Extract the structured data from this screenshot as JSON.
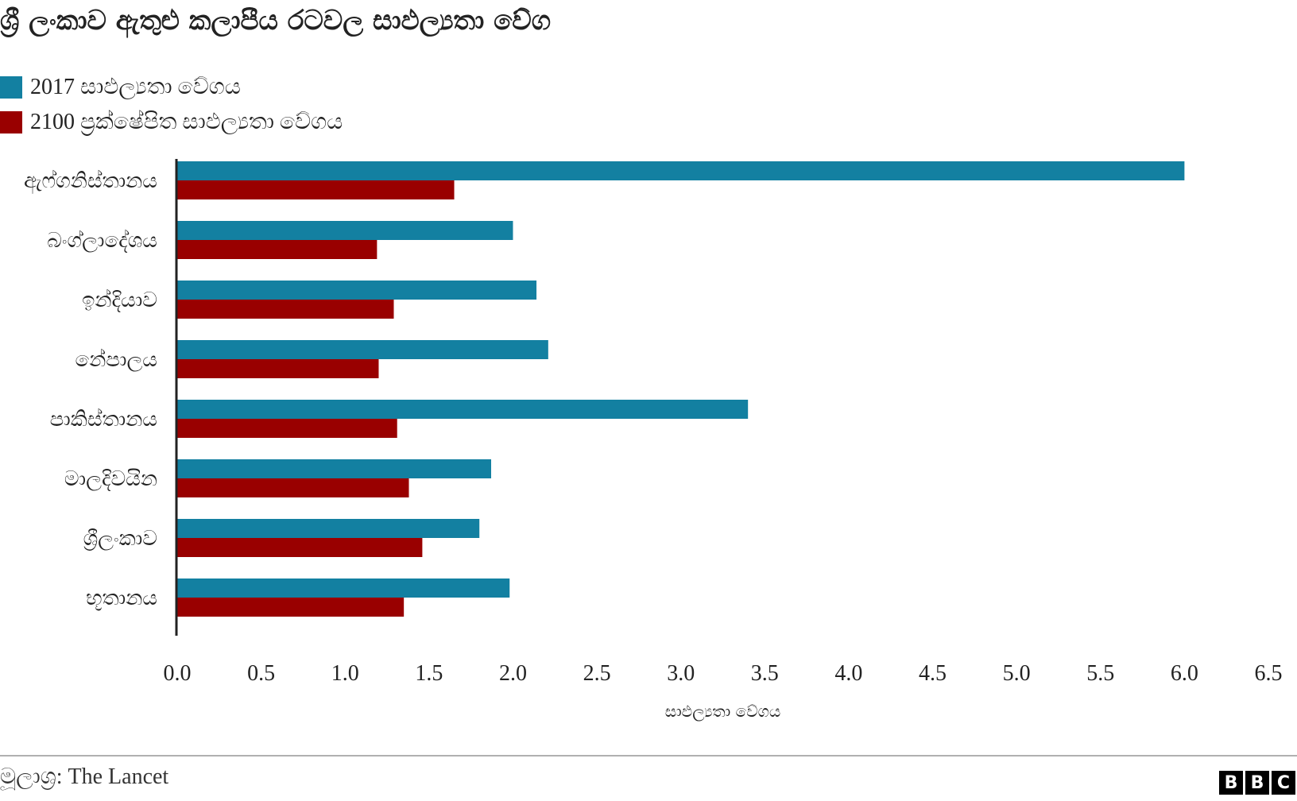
{
  "chart_data": {
    "type": "bar",
    "orientation": "horizontal",
    "title": "ශ්‍රී ලංකාව ඇතුළු කලාපීය රටවල සාඵල්‍යතා වේග",
    "categories": [
      "ඇෆ්ගනිස්තානය",
      "බංග්ලාදේශය",
      "ඉන්දියාව",
      "නේපාලය",
      "පාකිස්තානය",
      "මාලදිවයින",
      "ශ්‍රීලංකාව",
      "භූතානය"
    ],
    "series": [
      {
        "name": "2017 සාඵල්‍යතා වේගය",
        "color": "#1380A1",
        "values": [
          6.0,
          2.0,
          2.14,
          2.21,
          3.4,
          1.87,
          1.8,
          1.98
        ]
      },
      {
        "name": "2100 ප්‍රක්ෂේපිත සාඵල්‍යතා වේගය",
        "color": "#990000",
        "values": [
          1.65,
          1.19,
          1.29,
          1.2,
          1.31,
          1.38,
          1.46,
          1.35
        ]
      }
    ],
    "xlabel": "සාඵල්‍යතා වේගය",
    "ylabel": "",
    "xlim": [
      0,
      6.5
    ],
    "ticks": [
      "0.0",
      "0.5",
      "1.0",
      "1.5",
      "2.0",
      "2.5",
      "3.0",
      "3.5",
      "4.0",
      "4.5",
      "5.0",
      "5.5",
      "6.0",
      "6.5"
    ],
    "grid": false,
    "legend_position": "top-left"
  },
  "source": "මූලාශ්‍ර: The Lancet",
  "logo": {
    "letters": [
      "B",
      "B",
      "C"
    ]
  }
}
